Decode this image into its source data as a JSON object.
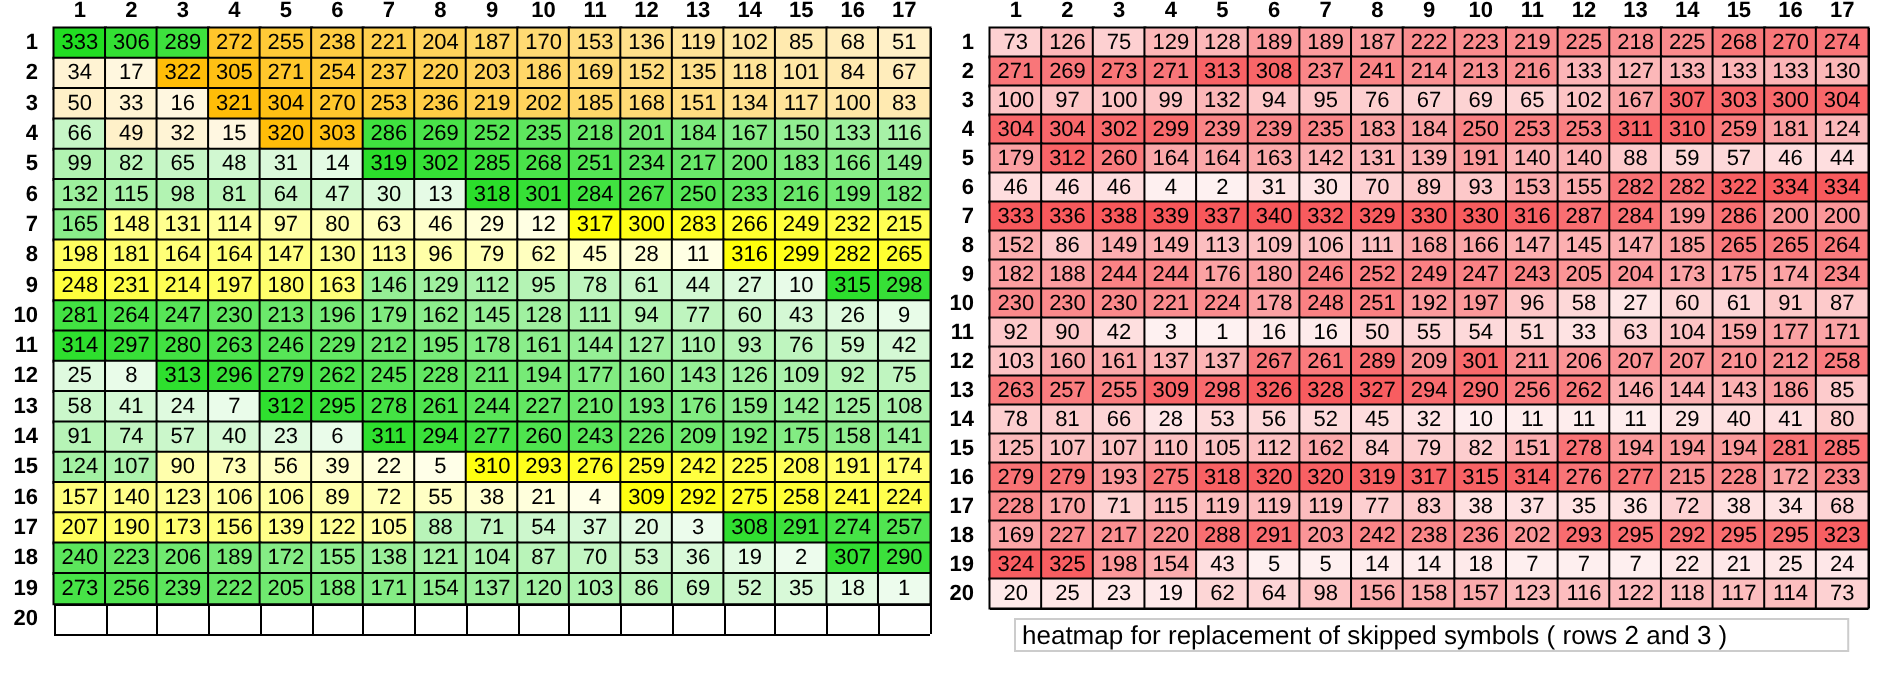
{
  "chart_data": [
    {
      "type": "heatmap",
      "categories": [
        "1",
        "2",
        "3",
        "4",
        "5",
        "6",
        "7",
        "8",
        "9",
        "10",
        "11",
        "12",
        "13",
        "14",
        "15",
        "16",
        "17"
      ],
      "y_categories": [
        "1",
        "2",
        "3",
        "4",
        "5",
        "6",
        "7",
        "8",
        "9",
        "10",
        "11",
        "12",
        "13",
        "14",
        "15",
        "16",
        "17",
        "18",
        "19",
        "20"
      ],
      "data_labels": true,
      "grid": true,
      "cells": [
        [
          333,
          306,
          289,
          272,
          255,
          238,
          221,
          204,
          187,
          170,
          153,
          136,
          119,
          102,
          85,
          68,
          51
        ],
        [
          34,
          17,
          322,
          305,
          271,
          254,
          237,
          220,
          203,
          186,
          169,
          152,
          135,
          118,
          101,
          84,
          67
        ],
        [
          50,
          33,
          16,
          321,
          304,
          270,
          253,
          236,
          219,
          202,
          185,
          168,
          151,
          134,
          117,
          100,
          83
        ],
        [
          66,
          49,
          32,
          15,
          320,
          303,
          286,
          269,
          252,
          235,
          218,
          201,
          184,
          167,
          150,
          133,
          116
        ],
        [
          99,
          82,
          65,
          48,
          31,
          14,
          319,
          302,
          285,
          268,
          251,
          234,
          217,
          200,
          183,
          166,
          149
        ],
        [
          132,
          115,
          98,
          81,
          64,
          47,
          30,
          13,
          318,
          301,
          284,
          267,
          250,
          233,
          216,
          199,
          182
        ],
        [
          165,
          148,
          131,
          114,
          97,
          80,
          63,
          46,
          29,
          12,
          317,
          300,
          283,
          266,
          249,
          232,
          215
        ],
        [
          198,
          181,
          164,
          164,
          147,
          130,
          113,
          96,
          79,
          62,
          45,
          28,
          11,
          316,
          299,
          282,
          265
        ],
        [
          248,
          231,
          214,
          197,
          180,
          163,
          146,
          129,
          112,
          95,
          78,
          61,
          44,
          27,
          10,
          315,
          298
        ],
        [
          281,
          264,
          247,
          230,
          213,
          196,
          179,
          162,
          145,
          128,
          111,
          94,
          77,
          60,
          43,
          26,
          9
        ],
        [
          314,
          297,
          280,
          263,
          246,
          229,
          212,
          195,
          178,
          161,
          144,
          127,
          110,
          93,
          76,
          59,
          42
        ],
        [
          25,
          8,
          313,
          296,
          279,
          262,
          245,
          228,
          211,
          194,
          177,
          160,
          143,
          126,
          109,
          92,
          75
        ],
        [
          58,
          41,
          24,
          7,
          312,
          295,
          278,
          261,
          244,
          227,
          210,
          193,
          176,
          159,
          142,
          125,
          108
        ],
        [
          91,
          74,
          57,
          40,
          23,
          6,
          311,
          294,
          277,
          260,
          243,
          226,
          209,
          192,
          175,
          158,
          141
        ],
        [
          124,
          107,
          90,
          73,
          56,
          39,
          22,
          5,
          310,
          293,
          276,
          259,
          242,
          225,
          208,
          191,
          174
        ],
        [
          157,
          140,
          123,
          106,
          106,
          89,
          72,
          55,
          38,
          21,
          4,
          309,
          292,
          275,
          258,
          241,
          224
        ],
        [
          207,
          190,
          173,
          156,
          139,
          122,
          105,
          88,
          71,
          54,
          37,
          20,
          3,
          308,
          291,
          274,
          257
        ],
        [
          240,
          223,
          206,
          189,
          172,
          155,
          138,
          121,
          104,
          87,
          70,
          53,
          36,
          19,
          2,
          307,
          290
        ],
        [
          273,
          256,
          239,
          222,
          205,
          188,
          171,
          154,
          137,
          120,
          103,
          86,
          69,
          52,
          35,
          18,
          1
        ],
        [
          null,
          null,
          null,
          null,
          null,
          null,
          null,
          null,
          null,
          null,
          null,
          null,
          null,
          null,
          null,
          null,
          null
        ]
      ],
      "colors": [
        [
          "#22dd22",
          "#22dd22",
          "#22dd22",
          "#ffbb00",
          "#ffbb00",
          "#ffbb00",
          "#ffbb00",
          "#ffbb00",
          "#ffbb00",
          "#ffbb00",
          "#ffbb00",
          "#ffbb00",
          "#ffbb00",
          "#ffbb00",
          "#ffbb00",
          "#ffbb00",
          "#ffbb00"
        ],
        [
          "#ffbb00",
          "#ffbb00",
          "#ffbb00",
          "#ffbb00",
          "#ffbb00",
          "#ffbb00",
          "#ffbb00",
          "#ffbb00",
          "#ffbb00",
          "#ffbb00",
          "#ffbb00",
          "#ffbb00",
          "#ffbb00",
          "#ffbb00",
          "#ffbb00",
          "#ffbb00",
          "#ffbb00"
        ],
        [
          "#ffbb00",
          "#ffbb00",
          "#ffbb00",
          "#ffbb00",
          "#ffbb00",
          "#ffbb00",
          "#ffbb00",
          "#ffbb00",
          "#ffbb00",
          "#ffbb00",
          "#ffbb00",
          "#ffbb00",
          "#ffbb00",
          "#ffbb00",
          "#ffbb00",
          "#ffbb00",
          "#ffbb00"
        ],
        [
          "#22dd22",
          "#ffbb00",
          "#ffbb00",
          "#ffbb00",
          "#ffbb00",
          "#ffbb00",
          "#22dd22",
          "#22dd22",
          "#22dd22",
          "#22dd22",
          "#22dd22",
          "#22dd22",
          "#22dd22",
          "#22dd22",
          "#22dd22",
          "#22dd22",
          "#22dd22"
        ],
        [
          "#22dd22",
          "#22dd22",
          "#22dd22",
          "#22dd22",
          "#22dd22",
          "#22dd22",
          "#22dd22",
          "#22dd22",
          "#22dd22",
          "#22dd22",
          "#22dd22",
          "#22dd22",
          "#22dd22",
          "#22dd22",
          "#22dd22",
          "#22dd22",
          "#22dd22"
        ],
        [
          "#22dd22",
          "#22dd22",
          "#22dd22",
          "#22dd22",
          "#22dd22",
          "#22dd22",
          "#22dd22",
          "#22dd22",
          "#22dd22",
          "#22dd22",
          "#22dd22",
          "#22dd22",
          "#22dd22",
          "#22dd22",
          "#22dd22",
          "#22dd22",
          "#22dd22"
        ],
        [
          "#22dd22",
          "#ffff00",
          "#ffff00",
          "#ffff00",
          "#ffff00",
          "#ffff00",
          "#ffff00",
          "#ffff00",
          "#ffff00",
          "#ffff00",
          "#ffff00",
          "#ffff00",
          "#ffff00",
          "#ffff00",
          "#ffff00",
          "#ffff00",
          "#ffff00"
        ],
        [
          "#ffff00",
          "#ffff00",
          "#ffff00",
          "#ffff00",
          "#ffff00",
          "#ffff00",
          "#ffff00",
          "#ffff00",
          "#ffff00",
          "#ffff00",
          "#ffff00",
          "#ffff00",
          "#ffff00",
          "#ffff00",
          "#ffff00",
          "#ffff00",
          "#ffff00"
        ],
        [
          "#ffff00",
          "#ffff00",
          "#ffff00",
          "#ffff00",
          "#ffff00",
          "#ffff00",
          "#22dd22",
          "#22dd22",
          "#22dd22",
          "#22dd22",
          "#22dd22",
          "#22dd22",
          "#22dd22",
          "#22dd22",
          "#22dd22",
          "#22dd22",
          "#22dd22"
        ],
        [
          "#22dd22",
          "#22dd22",
          "#22dd22",
          "#22dd22",
          "#22dd22",
          "#22dd22",
          "#22dd22",
          "#22dd22",
          "#22dd22",
          "#22dd22",
          "#22dd22",
          "#22dd22",
          "#22dd22",
          "#22dd22",
          "#22dd22",
          "#22dd22",
          "#22dd22"
        ],
        [
          "#22dd22",
          "#22dd22",
          "#22dd22",
          "#22dd22",
          "#22dd22",
          "#22dd22",
          "#22dd22",
          "#22dd22",
          "#22dd22",
          "#22dd22",
          "#22dd22",
          "#22dd22",
          "#22dd22",
          "#22dd22",
          "#22dd22",
          "#22dd22",
          "#22dd22"
        ],
        [
          "#22dd22",
          "#22dd22",
          "#22dd22",
          "#22dd22",
          "#22dd22",
          "#22dd22",
          "#22dd22",
          "#22dd22",
          "#22dd22",
          "#22dd22",
          "#22dd22",
          "#22dd22",
          "#22dd22",
          "#22dd22",
          "#22dd22",
          "#22dd22",
          "#22dd22"
        ],
        [
          "#22dd22",
          "#22dd22",
          "#22dd22",
          "#22dd22",
          "#22dd22",
          "#22dd22",
          "#22dd22",
          "#22dd22",
          "#22dd22",
          "#22dd22",
          "#22dd22",
          "#22dd22",
          "#22dd22",
          "#22dd22",
          "#22dd22",
          "#22dd22",
          "#22dd22"
        ],
        [
          "#22dd22",
          "#22dd22",
          "#22dd22",
          "#22dd22",
          "#22dd22",
          "#22dd22",
          "#22dd22",
          "#22dd22",
          "#22dd22",
          "#22dd22",
          "#22dd22",
          "#22dd22",
          "#22dd22",
          "#22dd22",
          "#22dd22",
          "#22dd22",
          "#22dd22"
        ],
        [
          "#22dd22",
          "#22dd22",
          "#ffff00",
          "#ffff00",
          "#ffff00",
          "#ffff00",
          "#ffff00",
          "#ffff00",
          "#ffff00",
          "#ffff00",
          "#ffff00",
          "#ffff00",
          "#ffff00",
          "#ffff00",
          "#ffff00",
          "#ffff00",
          "#ffff00"
        ],
        [
          "#ffff00",
          "#ffff00",
          "#ffff00",
          "#ffff00",
          "#ffff00",
          "#ffff00",
          "#ffff00",
          "#ffff00",
          "#ffff00",
          "#ffff00",
          "#ffff00",
          "#ffff00",
          "#ffff00",
          "#ffff00",
          "#ffff00",
          "#ffff00",
          "#ffff00"
        ],
        [
          "#ffff00",
          "#ffff00",
          "#ffff00",
          "#ffff00",
          "#ffff00",
          "#ffff00",
          "#ffff00",
          "#22dd22",
          "#22dd22",
          "#22dd22",
          "#22dd22",
          "#22dd22",
          "#22dd22",
          "#22dd22",
          "#22dd22",
          "#22dd22",
          "#22dd22"
        ],
        [
          "#22dd22",
          "#22dd22",
          "#22dd22",
          "#22dd22",
          "#22dd22",
          "#22dd22",
          "#22dd22",
          "#22dd22",
          "#22dd22",
          "#22dd22",
          "#22dd22",
          "#22dd22",
          "#22dd22",
          "#22dd22",
          "#22dd22",
          "#22dd22",
          "#22dd22"
        ],
        [
          "#22dd22",
          "#22dd22",
          "#22dd22",
          "#22dd22",
          "#22dd22",
          "#22dd22",
          "#22dd22",
          "#22dd22",
          "#22dd22",
          "#22dd22",
          "#22dd22",
          "#22dd22",
          "#22dd22",
          "#22dd22",
          "#22dd22",
          "#22dd22",
          "#22dd22"
        ],
        [
          null,
          null,
          null,
          null,
          null,
          null,
          null,
          null,
          null,
          null,
          null,
          null,
          null,
          null,
          null,
          null,
          null
        ]
      ]
    },
    {
      "type": "heatmap",
      "categories": [
        "1",
        "2",
        "3",
        "4",
        "5",
        "6",
        "7",
        "8",
        "9",
        "10",
        "11",
        "12",
        "13",
        "14",
        "15",
        "16",
        "17"
      ],
      "y_categories": [
        "1",
        "2",
        "3",
        "4",
        "5",
        "6",
        "7",
        "8",
        "9",
        "10",
        "11",
        "12",
        "13",
        "14",
        "15",
        "16",
        "17",
        "18",
        "19",
        "20"
      ],
      "data_labels": true,
      "grid": true,
      "color": "#f8575a",
      "annotations": [
        "heatmap for replacement of skipped symbols ( rows 2 and 3 )"
      ],
      "cells": [
        [
          73,
          126,
          75,
          129,
          128,
          189,
          189,
          187,
          222,
          223,
          219,
          225,
          218,
          225,
          268,
          270,
          274
        ],
        [
          271,
          269,
          273,
          271,
          313,
          308,
          237,
          241,
          214,
          213,
          216,
          133,
          127,
          133,
          133,
          133,
          130
        ],
        [
          100,
          97,
          100,
          99,
          132,
          94,
          95,
          76,
          67,
          69,
          65,
          102,
          167,
          307,
          303,
          300,
          304
        ],
        [
          304,
          304,
          302,
          299,
          239,
          239,
          235,
          183,
          184,
          250,
          253,
          253,
          311,
          310,
          259,
          181,
          124
        ],
        [
          179,
          312,
          260,
          164,
          164,
          163,
          142,
          131,
          139,
          191,
          140,
          140,
          88,
          59,
          57,
          46,
          44
        ],
        [
          46,
          46,
          46,
          4,
          2,
          31,
          30,
          70,
          89,
          93,
          153,
          155,
          282,
          282,
          322,
          334,
          334
        ],
        [
          333,
          336,
          338,
          339,
          337,
          340,
          332,
          329,
          330,
          330,
          316,
          287,
          284,
          199,
          286,
          200,
          200
        ],
        [
          152,
          86,
          149,
          149,
          113,
          109,
          106,
          111,
          168,
          166,
          147,
          145,
          147,
          185,
          265,
          265,
          264
        ],
        [
          182,
          188,
          244,
          244,
          176,
          180,
          246,
          252,
          249,
          247,
          243,
          205,
          204,
          173,
          175,
          174,
          234
        ],
        [
          230,
          230,
          230,
          221,
          224,
          178,
          248,
          251,
          192,
          197,
          96,
          58,
          27,
          60,
          61,
          91,
          87
        ],
        [
          92,
          90,
          42,
          3,
          1,
          16,
          16,
          50,
          55,
          54,
          51,
          33,
          63,
          104,
          159,
          177,
          171
        ],
        [
          103,
          160,
          161,
          137,
          137,
          267,
          261,
          289,
          209,
          301,
          211,
          206,
          207,
          207,
          210,
          212,
          258
        ],
        [
          263,
          257,
          255,
          309,
          298,
          326,
          328,
          327,
          294,
          290,
          256,
          262,
          146,
          144,
          143,
          186,
          85
        ],
        [
          78,
          81,
          66,
          28,
          53,
          56,
          52,
          45,
          32,
          10,
          11,
          11,
          11,
          29,
          40,
          41,
          80
        ],
        [
          125,
          107,
          107,
          110,
          105,
          112,
          162,
          84,
          79,
          82,
          151,
          278,
          194,
          194,
          194,
          281,
          285
        ],
        [
          279,
          279,
          193,
          275,
          318,
          320,
          320,
          319,
          317,
          315,
          314,
          276,
          277,
          215,
          228,
          172,
          233
        ],
        [
          228,
          170,
          71,
          115,
          119,
          119,
          119,
          77,
          83,
          38,
          37,
          35,
          36,
          72,
          38,
          34,
          68
        ],
        [
          169,
          227,
          217,
          220,
          288,
          291,
          203,
          242,
          238,
          236,
          202,
          293,
          295,
          292,
          295,
          295,
          323
        ],
        [
          324,
          325,
          198,
          154,
          43,
          5,
          5,
          14,
          14,
          18,
          7,
          7,
          7,
          22,
          21,
          25,
          24
        ],
        [
          20,
          25,
          23,
          19,
          62,
          64,
          98,
          156,
          158,
          157,
          123,
          116,
          122,
          118,
          117,
          114,
          73
        ]
      ]
    }
  ]
}
